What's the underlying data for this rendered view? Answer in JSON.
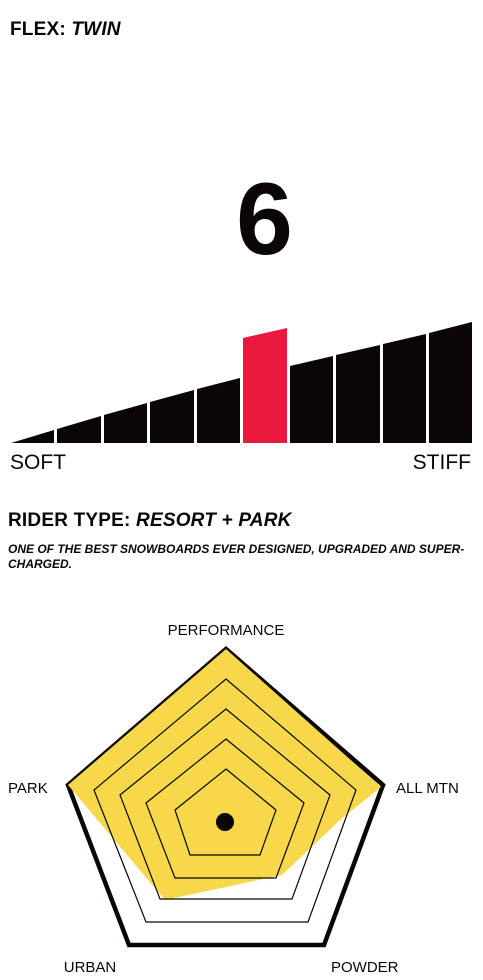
{
  "flex": {
    "heading_label": "FLEX:",
    "heading_value": "TWIN",
    "rating": "6",
    "scale_min_label": "SOFT",
    "scale_max_label": "STIFF",
    "rating_index": 6,
    "segment_count": 10,
    "highlight_color": "#e8193c",
    "bar_color": "#0a0608"
  },
  "rider_type": {
    "heading_label": "RIDER TYPE:",
    "heading_value": "RESORT + PARK",
    "description": "ONE OF THE BEST SNOWBOARDS EVER DESIGNED, UPGRADED AND SUPER-CHARGED."
  },
  "radar": {
    "axes": [
      "PERFORMANCE",
      "ALL MTN",
      "POWDER",
      "URBAN",
      "PARK"
    ],
    "fill_color": "#f6d84a",
    "outline_color": "#0a0608"
  }
}
